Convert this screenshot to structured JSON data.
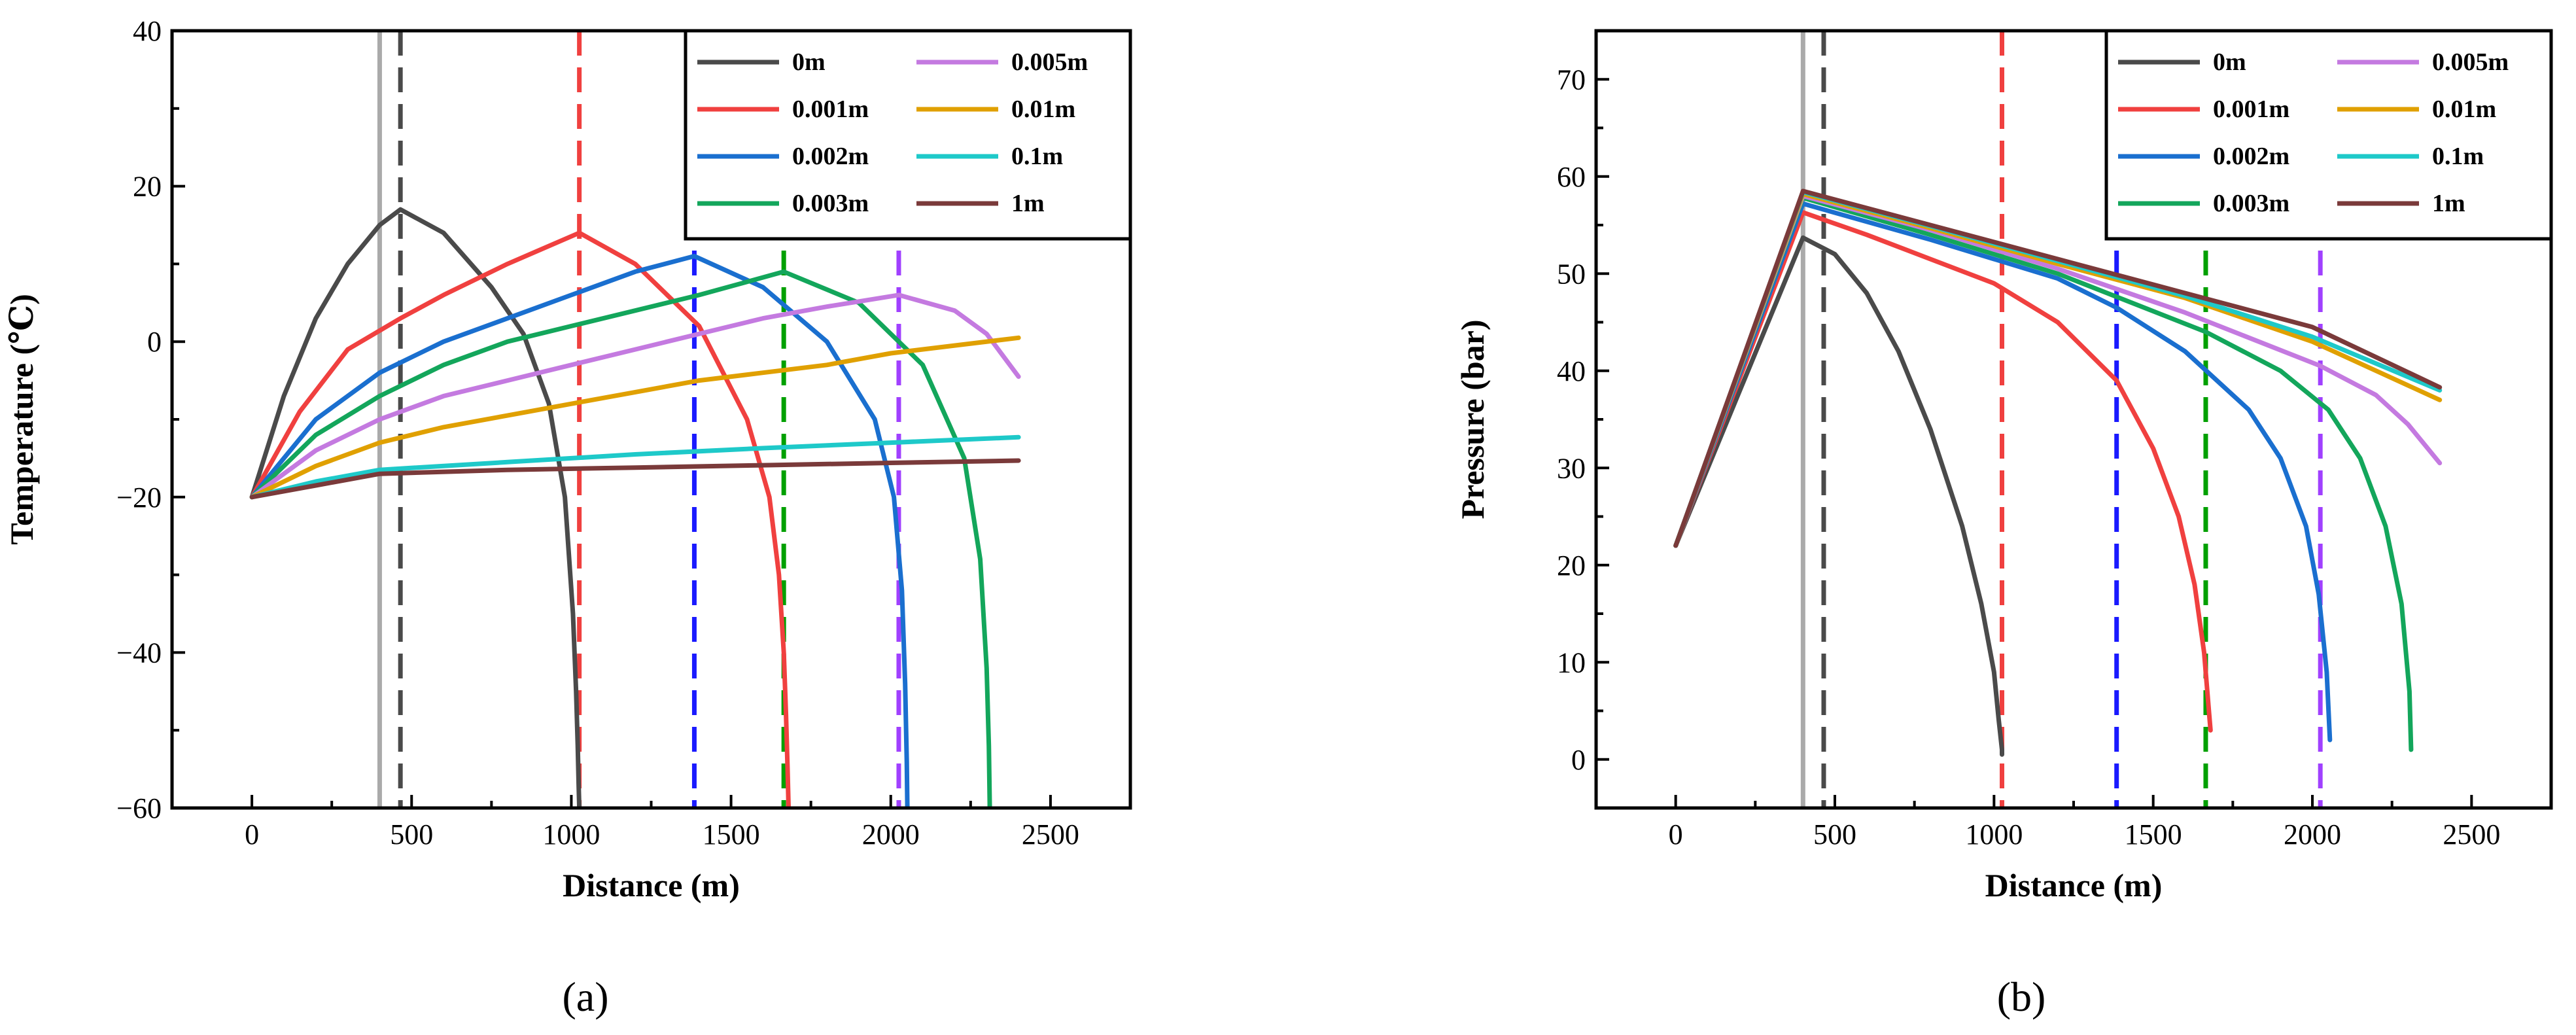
{
  "figure": {
    "panel_a_label": "(a)",
    "panel_b_label": "(b)"
  },
  "colors": {
    "0m": "#4a4a4a",
    "0.001m": "#f0403f",
    "0.002m": "#1a6fcf",
    "0.003m": "#13a65b",
    "0.005m": "#c47ae0",
    "0.01m": "#e0a000",
    "0.1m": "#1ec9c9",
    "1m": "#7a3a3a",
    "grey_line": "#aaaaaa",
    "blue_dash": "#1a1aff",
    "green_dash": "#00a000",
    "purple_dash": "#a040ff"
  },
  "chart_data": [
    {
      "type": "line",
      "panel": "a",
      "xlabel": "Distance (m)",
      "ylabel": "Temperature (℃)",
      "xlim": [
        -250,
        2750
      ],
      "ylim": [
        -60,
        40
      ],
      "xticks": [
        0,
        500,
        1000,
        1500,
        2000,
        2500
      ],
      "yticks": [
        -60,
        -40,
        -20,
        0,
        20,
        40
      ],
      "vertical_lines": [
        {
          "x": 400,
          "style": "solid",
          "color_key": "grey_line"
        },
        {
          "x": 465,
          "style": "dashed",
          "color_key": "0m"
        },
        {
          "x": 1025,
          "style": "dashed",
          "color_key": "0.001m"
        },
        {
          "x": 1385,
          "style": "dashed",
          "color_key": "blue_dash"
        },
        {
          "x": 1665,
          "style": "dashed",
          "color_key": "green_dash"
        },
        {
          "x": 2025,
          "style": "dashed",
          "color_key": "purple_dash"
        }
      ],
      "series": [
        {
          "name": "0m",
          "x": [
            0,
            100,
            200,
            300,
            400,
            465,
            600,
            750,
            850,
            930,
            980,
            1005,
            1015,
            1020,
            1023,
            1025
          ],
          "y": [
            -20,
            -7,
            3,
            10,
            15,
            17,
            14,
            7,
            1,
            -8,
            -20,
            -35,
            -45,
            -52,
            -57,
            -60
          ]
        },
        {
          "name": "0.001m",
          "x": [
            0,
            150,
            300,
            465,
            600,
            800,
            1025,
            1200,
            1400,
            1550,
            1620,
            1650,
            1665,
            1672,
            1677,
            1680
          ],
          "y": [
            -20,
            -9,
            -1,
            3,
            6,
            10,
            14,
            10,
            2,
            -10,
            -20,
            -30,
            -40,
            -48,
            -55,
            -60
          ]
        },
        {
          "name": "0.002m",
          "x": [
            0,
            200,
            400,
            600,
            800,
            1000,
            1200,
            1385,
            1600,
            1800,
            1950,
            2010,
            2035,
            2045,
            2050,
            2052
          ],
          "y": [
            -20,
            -10,
            -4,
            0,
            3,
            6,
            9,
            11,
            7,
            0,
            -10,
            -20,
            -32,
            -44,
            -54,
            -60
          ]
        },
        {
          "name": "0.003m",
          "x": [
            0,
            200,
            400,
            600,
            800,
            1000,
            1200,
            1400,
            1665,
            1900,
            2100,
            2230,
            2280,
            2300,
            2307,
            2310
          ],
          "y": [
            -20,
            -12,
            -7,
            -3,
            0,
            2,
            4,
            6,
            9,
            5,
            -3,
            -15,
            -28,
            -42,
            -52,
            -60
          ]
        },
        {
          "name": "0.005m",
          "x": [
            0,
            200,
            400,
            600,
            800,
            1000,
            1200,
            1400,
            1600,
            1800,
            2025,
            2200,
            2300,
            2400
          ],
          "y": [
            -20,
            -14,
            -10,
            -7,
            -5,
            -3,
            -1,
            1,
            3,
            4.5,
            6,
            4,
            1,
            -4.5
          ]
        },
        {
          "name": "0.01m",
          "x": [
            0,
            200,
            400,
            600,
            800,
            1000,
            1200,
            1400,
            1600,
            1800,
            2000,
            2200,
            2400
          ],
          "y": [
            -20,
            -16,
            -13,
            -11,
            -9.5,
            -8,
            -6.5,
            -5,
            -4,
            -3,
            -1.5,
            -0.5,
            0.5
          ]
        },
        {
          "name": "0.1m",
          "x": [
            0,
            200,
            400,
            800,
            1200,
            1600,
            2000,
            2400
          ],
          "y": [
            -20,
            -18,
            -16.5,
            -15.5,
            -14.5,
            -13.7,
            -13,
            -12.3
          ]
        },
        {
          "name": "1m",
          "x": [
            0,
            200,
            400,
            800,
            1200,
            1600,
            2000,
            2400
          ],
          "y": [
            -20,
            -18.5,
            -17,
            -16.5,
            -16.2,
            -15.9,
            -15.6,
            -15.3
          ]
        }
      ],
      "legend": {
        "placement": "top-right",
        "columns": [
          [
            "0m",
            "0.001m",
            "0.002m",
            "0.003m"
          ],
          [
            "0.005m",
            "0.01m",
            "0.1m",
            "1m"
          ]
        ]
      }
    },
    {
      "type": "line",
      "panel": "b",
      "xlabel": "Distance (m)",
      "ylabel": "Pressure (bar)",
      "xlim": [
        -250,
        2750
      ],
      "ylim": [
        -5,
        75
      ],
      "xticks": [
        0,
        500,
        1000,
        1500,
        2000,
        2500
      ],
      "yticks": [
        0,
        10,
        20,
        30,
        40,
        50,
        60,
        70
      ],
      "vertical_lines": [
        {
          "x": 400,
          "style": "solid",
          "color_key": "grey_line"
        },
        {
          "x": 465,
          "style": "dashed",
          "color_key": "0m"
        },
        {
          "x": 1025,
          "style": "dashed",
          "color_key": "0.001m"
        },
        {
          "x": 1385,
          "style": "dashed",
          "color_key": "blue_dash"
        },
        {
          "x": 1665,
          "style": "dashed",
          "color_key": "green_dash"
        },
        {
          "x": 2025,
          "style": "dashed",
          "color_key": "purple_dash"
        }
      ],
      "series": [
        {
          "name": "0m",
          "x": [
            0,
            400,
            500,
            600,
            700,
            800,
            900,
            960,
            1000,
            1015,
            1025,
            1025
          ],
          "y": [
            22,
            53.7,
            52,
            48,
            42,
            34,
            24,
            16,
            9,
            4,
            1,
            0.5
          ]
        },
        {
          "name": "0.001m",
          "x": [
            0,
            400,
            600,
            800,
            1000,
            1200,
            1385,
            1500,
            1580,
            1630,
            1660,
            1675,
            1680
          ],
          "y": [
            22,
            56.3,
            54,
            51.5,
            49,
            45,
            39,
            32,
            25,
            18,
            11,
            5,
            3
          ]
        },
        {
          "name": "0.002m",
          "x": [
            0,
            400,
            800,
            1200,
            1385,
            1600,
            1800,
            1900,
            1980,
            2020,
            2045,
            2055
          ],
          "y": [
            22,
            57.2,
            53.5,
            49.5,
            46.5,
            42,
            36,
            31,
            24,
            17,
            9,
            2
          ]
        },
        {
          "name": "0.003m",
          "x": [
            0,
            400,
            800,
            1200,
            1665,
            1900,
            2050,
            2150,
            2230,
            2280,
            2305,
            2310
          ],
          "y": [
            22,
            57.8,
            54,
            50,
            44,
            40,
            36,
            31,
            24,
            16,
            7,
            1
          ]
        },
        {
          "name": "0.005m",
          "x": [
            0,
            400,
            800,
            1200,
            1600,
            2025,
            2200,
            2300,
            2400
          ],
          "y": [
            22,
            58,
            54.5,
            50.5,
            46,
            40.5,
            37.5,
            34.5,
            30.5
          ]
        },
        {
          "name": "0.01m",
          "x": [
            0,
            400,
            800,
            1200,
            1600,
            2000,
            2400
          ],
          "y": [
            22,
            58.2,
            54.7,
            51,
            47.5,
            43,
            37
          ]
        },
        {
          "name": "0.1m",
          "x": [
            0,
            400,
            800,
            1200,
            1600,
            2000,
            2400
          ],
          "y": [
            22,
            58.4,
            54.9,
            51.3,
            47.7,
            43.5,
            38
          ]
        },
        {
          "name": "1m",
          "x": [
            0,
            400,
            800,
            1200,
            1600,
            2000,
            2400
          ],
          "y": [
            22,
            58.5,
            55,
            51.5,
            48,
            44.5,
            38.3
          ]
        }
      ],
      "legend": {
        "placement": "top-right",
        "columns": [
          [
            "0m",
            "0.001m",
            "0.002m",
            "0.003m"
          ],
          [
            "0.005m",
            "0.01m",
            "0.1m",
            "1m"
          ]
        ]
      }
    }
  ]
}
